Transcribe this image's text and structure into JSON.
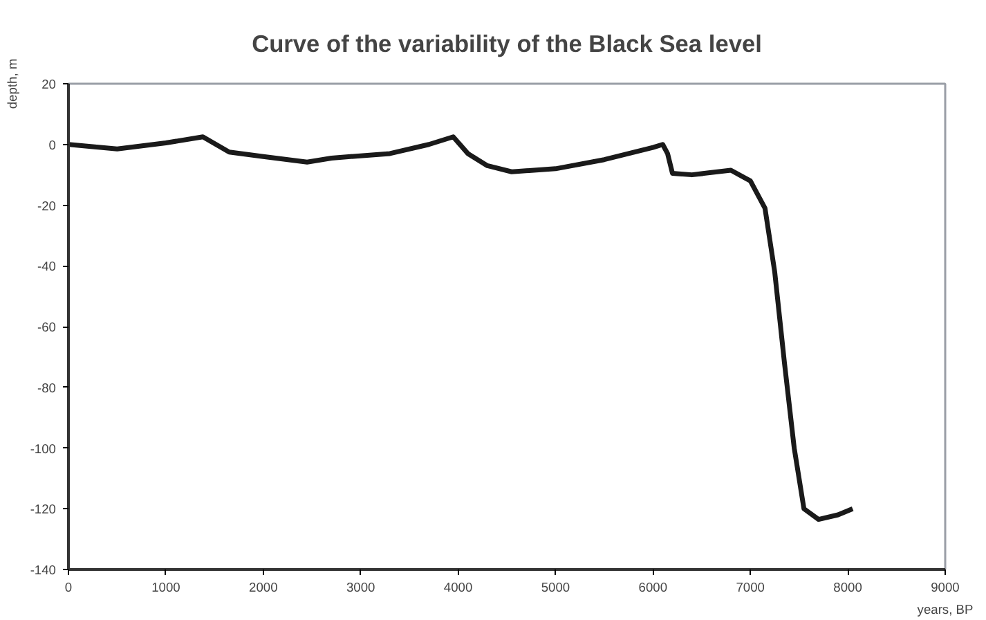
{
  "chart_data": {
    "type": "line",
    "title": "Curve of the variability of the Black Sea level",
    "xlabel": "years, BP",
    "ylabel": "depth, m",
    "series": [
      {
        "color": "#1a1a1a",
        "x": [
          0,
          500,
          1000,
          1380,
          1650,
          2000,
          2450,
          2700,
          3300,
          3700,
          3950,
          4100,
          4300,
          4550,
          5000,
          5500,
          6000,
          6100,
          6150,
          6200,
          6400,
          6800,
          7000,
          7150,
          7250,
          7350,
          7450,
          7550,
          7700,
          7900,
          8050
        ],
        "values": [
          0,
          -1.5,
          0.5,
          2.5,
          -2.5,
          -4,
          -5.8,
          -4.5,
          -3,
          0,
          2.5,
          -3,
          -7,
          -9,
          -8,
          -5,
          -1,
          0,
          -3,
          -9.5,
          -10,
          -8.5,
          -12,
          -21,
          -42,
          -72,
          -100,
          -120,
          -123.5,
          -122,
          -120
        ]
      }
    ],
    "xlim": [
      0,
      9000
    ],
    "xticks": [
      0,
      1000,
      2000,
      3000,
      4000,
      5000,
      6000,
      7000,
      8000,
      9000
    ],
    "ylim": [
      -140,
      20
    ],
    "yticks": [
      -140,
      -120,
      -100,
      -80,
      -60,
      -40,
      -20,
      0,
      20
    ],
    "grid": false,
    "marker": "none",
    "line_style": "solid"
  }
}
